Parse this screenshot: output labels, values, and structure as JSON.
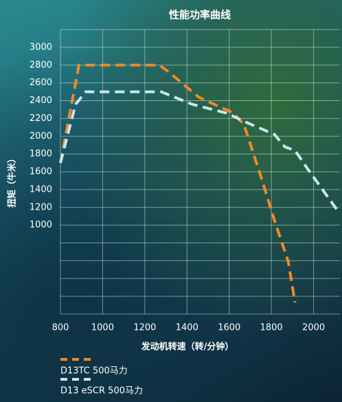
{
  "chart_data": {
    "type": "line",
    "title": "性能功率曲线",
    "x_label": "发动机转速（转/分钟）",
    "y_label": "扭矩（牛米）",
    "xlim": [
      800,
      2125
    ],
    "xticks": [
      800,
      1000,
      1200,
      1400,
      1600,
      1800,
      2000
    ],
    "ylim": [
      0,
      3200
    ],
    "yticks": [
      1000,
      1200,
      1400,
      1600,
      1800,
      2000,
      2200,
      2400,
      2600,
      2800,
      3000
    ],
    "ygrid": [
      0,
      200,
      400,
      600,
      800,
      1000,
      1200,
      1400,
      1600,
      1800,
      2000,
      2200,
      2400,
      2600,
      2800,
      3000,
      3200
    ],
    "grid": true,
    "series": [
      {
        "name": "D13TC 500马力",
        "color": "#f08a24",
        "x": [
          800,
          888,
          1268,
          1310,
          1455,
          1620,
          1670,
          1750,
          1815,
          1880,
          1912
        ],
        "values": [
          1700,
          2800,
          2800,
          2730,
          2440,
          2260,
          2130,
          1550,
          1050,
          590,
          130
        ]
      },
      {
        "name": "D13 eSCR 500马力",
        "color": "#c9e6f0",
        "x": [
          800,
          872,
          920,
          1278,
          1424,
          1587,
          1668,
          1815,
          1864,
          1912,
          1961,
          2124
        ],
        "values": [
          1700,
          2360,
          2500,
          2500,
          2360,
          2260,
          2170,
          2020,
          1880,
          1840,
          1670,
          1130
        ]
      }
    ]
  }
}
